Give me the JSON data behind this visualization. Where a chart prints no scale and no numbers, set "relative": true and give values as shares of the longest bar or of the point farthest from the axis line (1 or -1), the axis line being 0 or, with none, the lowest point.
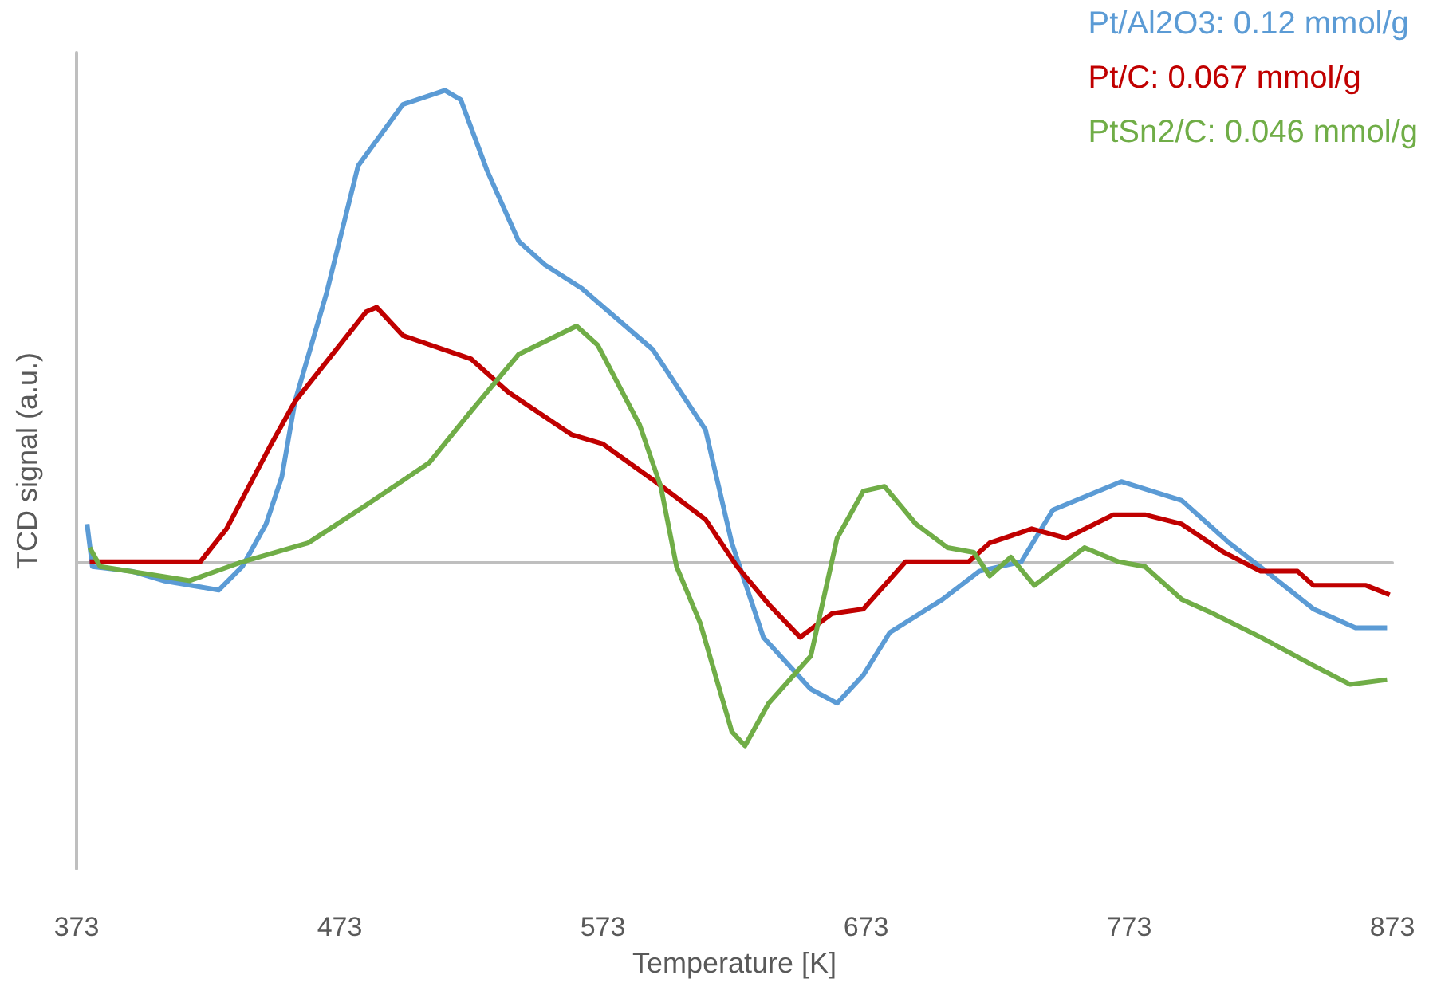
{
  "chart_data": {
    "type": "line",
    "relative": true,
    "xlabel": "Temperature [K]",
    "ylabel": "TCD signal (a.u.)",
    "xlim": [
      373,
      873
    ],
    "xticks": [
      373,
      473,
      573,
      673,
      773,
      873
    ],
    "grid": false,
    "legend": "top right",
    "marker": "none",
    "line_style": "solid",
    "tick_labels": "x",
    "series": [
      {
        "name": "Pt/Al2O3: 0.12 mmol/g",
        "color": "#5b9bd5",
        "x": [
          377,
          379,
          394,
          406,
          427,
          436,
          445,
          451,
          456,
          468,
          480,
          497,
          513,
          519,
          529,
          541,
          551,
          565,
          592,
          612,
          622,
          634,
          652,
          662,
          672,
          682,
          702,
          716,
          732,
          744,
          770,
          793,
          811,
          825,
          843,
          859,
          871
        ],
        "values": [
          0.08,
          -0.01,
          -0.02,
          -0.04,
          -0.06,
          -0.01,
          0.08,
          0.18,
          0.34,
          0.57,
          0.84,
          0.97,
          1.0,
          0.98,
          0.83,
          0.68,
          0.63,
          0.58,
          0.45,
          0.28,
          0.04,
          -0.16,
          -0.27,
          -0.3,
          -0.24,
          -0.15,
          -0.08,
          -0.02,
          0,
          0.11,
          0.17,
          0.13,
          0.04,
          -0.02,
          -0.1,
          -0.14,
          -0.14
        ]
      },
      {
        "name": "Pt/C: 0.067 mmol/g",
        "color": "#c00000",
        "x": [
          378,
          420,
          430,
          447,
          456,
          483,
          487,
          497,
          523,
          537,
          561,
          573,
          593,
          612,
          624,
          636,
          648,
          660,
          672,
          688,
          712,
          720,
          736,
          749,
          767,
          779,
          793,
          809,
          823,
          837,
          843,
          863,
          872
        ],
        "values": [
          0,
          0,
          0.07,
          0.25,
          0.34,
          0.53,
          0.54,
          0.48,
          0.43,
          0.36,
          0.27,
          0.25,
          0.17,
          0.09,
          -0.01,
          -0.09,
          -0.16,
          -0.11,
          -0.1,
          0,
          0,
          0.04,
          0.07,
          0.05,
          0.1,
          0.1,
          0.08,
          0.02,
          -0.02,
          -0.02,
          -0.05,
          -0.05,
          -0.07
        ]
      },
      {
        "name": "PtSn2/C: 0.046 mmol/g",
        "color": "#70ad47",
        "x": [
          378,
          382,
          416,
          436,
          461,
          483,
          507,
          523,
          541,
          563,
          571,
          587,
          595,
          601,
          610,
          622,
          627,
          636,
          652,
          662,
          672,
          680,
          692,
          704,
          714,
          720,
          728,
          737,
          756,
          769,
          779,
          793,
          805,
          823,
          843,
          857,
          871
        ],
        "values": [
          0.03,
          -0.01,
          -0.04,
          0,
          0.04,
          0.12,
          0.21,
          0.32,
          0.44,
          0.5,
          0.46,
          0.29,
          0.16,
          -0.01,
          -0.13,
          -0.36,
          -0.39,
          -0.3,
          -0.2,
          0.05,
          0.15,
          0.16,
          0.08,
          0.03,
          0.02,
          -0.03,
          0.01,
          -0.05,
          0.03,
          0,
          -0.01,
          -0.08,
          -0.11,
          -0.16,
          -0.22,
          -0.26,
          -0.25
        ]
      }
    ]
  }
}
